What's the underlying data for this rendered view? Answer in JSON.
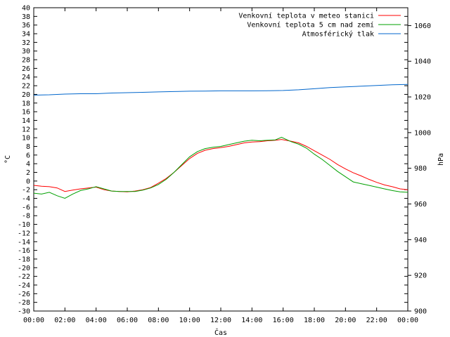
{
  "chart_data": {
    "type": "line",
    "xlabel": "Čas",
    "ylabel": "°C",
    "y2label": "hPa",
    "x_ticks": [
      "00:00",
      "02:00",
      "04:00",
      "06:00",
      "08:00",
      "10:00",
      "12:00",
      "14:00",
      "16:00",
      "18:00",
      "20:00",
      "22:00",
      "00:00"
    ],
    "x_range_hours": [
      0,
      24
    ],
    "ylim": [
      -30,
      40
    ],
    "y_ticks": [
      -30,
      -28,
      -26,
      -24,
      -22,
      -20,
      -18,
      -16,
      -14,
      -12,
      -10,
      -8,
      -6,
      -4,
      -2,
      0,
      2,
      4,
      6,
      8,
      10,
      12,
      14,
      16,
      18,
      20,
      22,
      24,
      26,
      28,
      30,
      32,
      34,
      36,
      38,
      40
    ],
    "y2lim": [
      900,
      1070
    ],
    "y2_ticks": [
      900,
      920,
      940,
      960,
      980,
      1000,
      1020,
      1040,
      1060
    ],
    "grid": false,
    "legend_position": "top-right",
    "series": [
      {
        "name": "Venkovní teplota v meteo stanici",
        "color": "#ff0000",
        "axis": "left",
        "x": [
          0,
          0.5,
          1,
          1.5,
          2,
          2.5,
          3,
          3.5,
          4,
          4.5,
          5,
          5.5,
          6,
          6.5,
          7,
          7.5,
          8,
          8.5,
          9,
          9.5,
          10,
          10.5,
          11,
          11.5,
          12,
          12.5,
          13,
          13.5,
          14,
          14.5,
          15,
          15.5,
          15.9,
          16.5,
          17,
          17.5,
          18,
          18.5,
          19,
          19.5,
          20,
          20.5,
          21,
          21.5,
          22,
          22.5,
          23,
          23.5,
          24
        ],
        "values": [
          -1.0,
          -1.2,
          -1.3,
          -1.6,
          -2.4,
          -2.1,
          -1.8,
          -1.6,
          -1.4,
          -2.0,
          -2.3,
          -2.4,
          -2.5,
          -2.3,
          -2.0,
          -1.5,
          -0.5,
          0.6,
          2.0,
          3.6,
          5.2,
          6.4,
          7.1,
          7.5,
          7.7,
          8.0,
          8.4,
          8.8,
          9.0,
          9.1,
          9.3,
          9.4,
          9.6,
          9.2,
          8.8,
          8.0,
          7.0,
          6.0,
          5.0,
          3.8,
          2.8,
          1.9,
          1.2,
          0.4,
          -0.3,
          -0.9,
          -1.3,
          -1.8,
          -2.0
        ]
      },
      {
        "name": "Venkovní teplota 5 cm nad zemí",
        "color": "#00a000",
        "axis": "left",
        "x": [
          0,
          0.5,
          1,
          1.5,
          2,
          2.5,
          3,
          3.5,
          4,
          4.5,
          5,
          5.5,
          6,
          6.5,
          7,
          7.5,
          8,
          8.5,
          9,
          9.5,
          10,
          10.5,
          11,
          11.5,
          12,
          12.5,
          13,
          13.5,
          14,
          14.5,
          15,
          15.5,
          15.9,
          16.5,
          17,
          17.5,
          18,
          18.5,
          19,
          19.5,
          20,
          20.5,
          21,
          21.5,
          22,
          22.5,
          23,
          23.5,
          24
        ],
        "values": [
          -2.8,
          -3.0,
          -2.6,
          -3.4,
          -4.0,
          -3.0,
          -2.2,
          -1.8,
          -1.3,
          -1.8,
          -2.3,
          -2.4,
          -2.4,
          -2.4,
          -2.1,
          -1.6,
          -0.8,
          0.4,
          2.0,
          3.8,
          5.6,
          6.8,
          7.5,
          7.8,
          8.0,
          8.4,
          8.8,
          9.2,
          9.4,
          9.3,
          9.4,
          9.5,
          10.1,
          9.1,
          8.5,
          7.6,
          6.2,
          5.0,
          3.6,
          2.2,
          1.0,
          -0.2,
          -0.6,
          -1.0,
          -1.4,
          -1.8,
          -2.2,
          -2.5,
          -2.6
        ]
      },
      {
        "name": "Atmosférický tlak",
        "color": "#0066cc",
        "axis": "right",
        "x": [
          0,
          1,
          2,
          3,
          4,
          5,
          6,
          7,
          8,
          9,
          10,
          11,
          12,
          13,
          14,
          15,
          16,
          17,
          18,
          19,
          20,
          21,
          22,
          23,
          24
        ],
        "values": [
          1021.0,
          1021.2,
          1021.6,
          1021.8,
          1021.8,
          1022.2,
          1022.4,
          1022.6,
          1022.8,
          1023.0,
          1023.2,
          1023.3,
          1023.4,
          1023.4,
          1023.4,
          1023.5,
          1023.6,
          1024.0,
          1024.6,
          1025.2,
          1025.6,
          1026.0,
          1026.4,
          1026.8,
          1027.0
        ]
      }
    ]
  }
}
